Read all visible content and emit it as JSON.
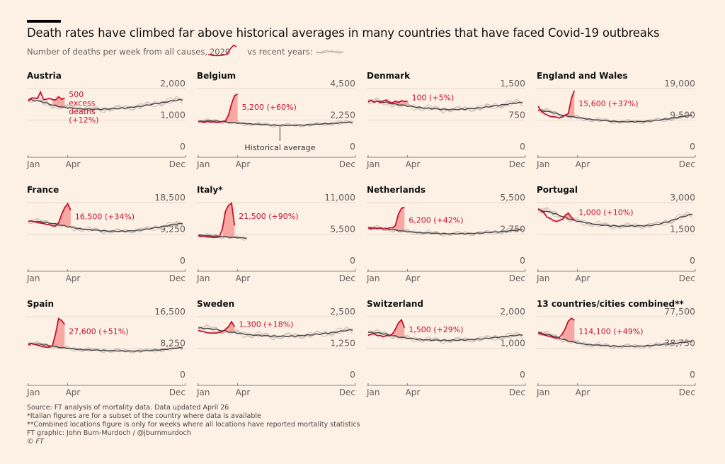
{
  "header": {
    "title": "Death rates have climbed far above historical averages in many countries that have faced Covid-19 outbreaks",
    "subtitle_part1": "Number of deaths per week from all causes,",
    "subtitle_2020": "2020",
    "subtitle_part2": "vs recent years:"
  },
  "colors": {
    "background": "#fdf1e6",
    "year_2020": "#c8102e",
    "excess_fill": "#f7a8a3",
    "average": "#4d4845",
    "recent_years": "#c9c0b8"
  },
  "chart_data": {
    "type": "line",
    "layout": "small-multiples 4x3",
    "x_ticks": [
      "Jan",
      "Apr",
      "Dec"
    ],
    "x_unit": "week of year",
    "note_historical_average": "Historical average",
    "panels": [
      {
        "name": "Austria",
        "ylim": [
          0,
          2000
        ],
        "y_ticks": [
          "0",
          "1,000",
          "2,000"
        ],
        "annotation": "500\nexcess\ndeaths\n(+12%)",
        "historical_average": [
          1650,
          1600,
          1480,
          1400,
          1370,
          1350,
          1340,
          1360,
          1380,
          1420,
          1470,
          1540,
          1600,
          1650
        ],
        "y2020": [
          1600,
          1700,
          1700,
          1680,
          1890,
          1650,
          1660,
          1690,
          1650,
          1640,
          1740,
          1660,
          1700
        ]
      },
      {
        "name": "Belgium",
        "ylim": [
          0,
          4500
        ],
        "y_ticks": [
          "0",
          "2,250",
          "4,500"
        ],
        "annotation": "5,200 (+60%)",
        "historical_average": [
          2150,
          2200,
          2150,
          2050,
          2000,
          1950,
          1900,
          1880,
          1870,
          1900,
          1950,
          2000,
          2050,
          2100
        ],
        "y2020": [
          2150,
          2150,
          2080,
          2150,
          2100,
          2130,
          2080,
          2100,
          2150,
          2200,
          2600,
          3400,
          4000,
          4100
        ]
      },
      {
        "name": "Denmark",
        "ylim": [
          0,
          1500
        ],
        "y_ticks": [
          "0",
          "750",
          "1,500"
        ],
        "annotation": "100 (+5%)",
        "historical_average": [
          1200,
          1190,
          1140,
          1100,
          1060,
          1030,
          1010,
          1000,
          1010,
          1030,
          1060,
          1100,
          1140,
          1170
        ],
        "y2020": [
          1180,
          1220,
          1170,
          1210,
          1160,
          1200,
          1230,
          1180,
          1160,
          1200,
          1170,
          1210,
          1190,
          1200
        ]
      },
      {
        "name": "England and Wales",
        "ylim": [
          0,
          19000
        ],
        "y_ticks": [
          "0",
          "9,500",
          "19,000"
        ],
        "annotation": "15,600 (+37%)",
        "historical_average": [
          12500,
          12000,
          11000,
          10400,
          9900,
          9500,
          9200,
          9000,
          9000,
          9100,
          9400,
          9900,
          10500,
          11000
        ],
        "y2020": [
          13700,
          12200,
          11500,
          11000,
          10600,
          10500,
          10400,
          10100,
          10500,
          11000,
          11500,
          16000,
          18400
        ]
      },
      {
        "name": "France",
        "ylim": [
          0,
          18500
        ],
        "y_ticks": [
          "0",
          "9,250",
          "18,500"
        ],
        "annotation": "16,500 (+34%)",
        "historical_average": [
          13000,
          12900,
          12400,
          11700,
          11000,
          10600,
          10300,
          10100,
          10100,
          10300,
          10700,
          11300,
          11900,
          12400
        ],
        "y2020": [
          13000,
          13100,
          12900,
          12600,
          12500,
          12400,
          12100,
          12000,
          11700,
          11600,
          12500,
          15000,
          17000,
          18200,
          16300
        ]
      },
      {
        "name": "Italy*",
        "ylim": [
          0,
          11000
        ],
        "y_ticks": [
          "0",
          "5,500",
          "11,000"
        ],
        "annotation": "21,500 (+90%)",
        "historical_average": [
          5300,
          5200,
          5100,
          4900,
          4800
        ],
        "y2020": [
          5200,
          5100,
          5150,
          5000,
          5000,
          4900,
          4950,
          5000,
          6500,
          9500,
          10500,
          10900,
          7000
        ]
      },
      {
        "name": "Netherlands",
        "ylim": [
          0,
          5500
        ],
        "y_ticks": [
          "0",
          "2,750",
          "5,500"
        ],
        "annotation": "6,200 (+42%)",
        "historical_average": [
          3300,
          3250,
          3150,
          3000,
          2900,
          2850,
          2800,
          2780,
          2790,
          2820,
          2880,
          2950,
          3050,
          3150
        ],
        "y2020": [
          3300,
          3200,
          3300,
          3200,
          3300,
          3200,
          3200,
          3300,
          3300,
          3500,
          4500,
          5000,
          5100
        ]
      },
      {
        "name": "Portugal",
        "ylim": [
          0,
          3000
        ],
        "y_ticks": [
          "0",
          "1,500",
          "3,000"
        ],
        "annotation": "1,000 (+10%)",
        "historical_average": [
          2650,
          2550,
          2350,
          2150,
          2050,
          1950,
          1900,
          1880,
          1890,
          1900,
          1950,
          2100,
          2300,
          2450
        ],
        "y2020": [
          2700,
          2600,
          2500,
          2300,
          2250,
          2150,
          2100,
          2150,
          2200,
          2400,
          2500,
          2300,
          2150
        ]
      },
      {
        "name": "Spain",
        "ylim": [
          0,
          16500
        ],
        "y_ticks": [
          "0",
          "8,250",
          "16,500"
        ],
        "annotation": "27,600 (+51%)",
        "historical_average": [
          9400,
          9300,
          8800,
          8300,
          8000,
          7800,
          7700,
          7600,
          7500,
          7500,
          7600,
          7800,
          8100,
          8400
        ],
        "y2020": [
          9000,
          9500,
          9300,
          9000,
          8800,
          8600,
          8500,
          8500,
          9000,
          12000,
          16000,
          15500,
          14500
        ]
      },
      {
        "name": "Sweden",
        "ylim": [
          0,
          2500
        ],
        "y_ticks": [
          "0",
          "1,250",
          "2,500"
        ],
        "annotation": "1,300 (+18%)",
        "historical_average": [
          2050,
          2020,
          1950,
          1870,
          1800,
          1760,
          1730,
          1720,
          1730,
          1760,
          1800,
          1850,
          1920,
          1980
        ],
        "y2020": [
          1950,
          1920,
          1900,
          1860,
          1850,
          1850,
          1850,
          1880,
          1900,
          2000,
          2100,
          2300,
          2100
        ]
      },
      {
        "name": "Switzerland",
        "ylim": [
          0,
          2000
        ],
        "y_ticks": [
          "0",
          "1,000",
          "2,000"
        ],
        "annotation": "1,500 (+29%)",
        "historical_average": [
          1500,
          1480,
          1400,
          1330,
          1290,
          1260,
          1250,
          1250,
          1260,
          1280,
          1310,
          1350,
          1390,
          1420
        ],
        "y2020": [
          1400,
          1450,
          1450,
          1400,
          1400,
          1360,
          1400,
          1400,
          1450,
          1600,
          1800,
          1900,
          1650
        ]
      },
      {
        "name": "13 countries/cities combined**",
        "ylim": [
          0,
          77500
        ],
        "y_ticks": [
          "0",
          "38,750",
          "77,500"
        ],
        "annotation": "114,100 (+49%)",
        "historical_average": [
          58000,
          55000,
          50000,
          46000,
          43500,
          42500,
          41500,
          41000,
          41000,
          41500,
          42500,
          44000,
          45500,
          47000
        ],
        "y2020": [
          57500,
          56000,
          55000,
          54000,
          53000,
          52000,
          51000,
          52000,
          56000,
          63000,
          72000,
          75500,
          73000
        ]
      }
    ]
  },
  "footer": {
    "source": "Source: FT analysis of mortality data. Data updated April 26",
    "note1": "*Italian figures are for a subset of the country where data is available",
    "note2": "**Combined locations figure is only for weeks where all locations have reported mortality statistics",
    "credit": "FT graphic: John Burn-Murdoch / @jburnmurdoch",
    "copyright": "© FT"
  }
}
